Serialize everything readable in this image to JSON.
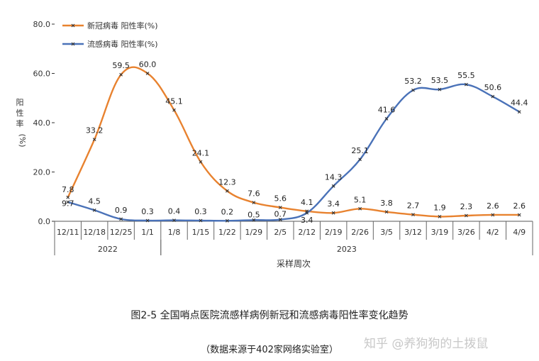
{
  "chart_data": {
    "type": "line",
    "categories": [
      "12/11",
      "12/18",
      "12/25",
      "1/1",
      "1/8",
      "1/15",
      "1/22",
      "1/29",
      "2/5",
      "2/12",
      "2/19",
      "2/26",
      "3/5",
      "3/12",
      "3/19",
      "3/26",
      "4/2",
      "4/9"
    ],
    "year_groups": [
      {
        "label": "2022",
        "from": 0,
        "to": 3
      },
      {
        "label": "2023",
        "from": 4,
        "to": 17
      }
    ],
    "series": [
      {
        "name": "新冠病毒 阳性率(%)",
        "color": "#e8822f",
        "values": [
          9.7,
          33.2,
          59.5,
          60.0,
          45.1,
          24.1,
          12.3,
          7.6,
          5.6,
          4.1,
          3.4,
          5.1,
          3.8,
          2.7,
          1.9,
          2.3,
          2.6,
          2.6
        ],
        "labels": [
          "9.7",
          "33.2",
          "59.5",
          "60.0",
          "45.1",
          "24.1",
          "12.3",
          "7.6",
          "5.6",
          "4.1",
          "3.4",
          "5.1",
          "3.8",
          "2.7",
          "1.9",
          "2.3",
          "2.6",
          "2.6"
        ]
      },
      {
        "name": "流感病毒 阳性率(%)",
        "color": "#4a72b8",
        "values": [
          7.8,
          4.5,
          0.9,
          0.3,
          0.4,
          0.3,
          0.2,
          0.5,
          0.7,
          3.4,
          14.3,
          25.1,
          41.6,
          53.2,
          53.5,
          55.5,
          50.6,
          44.4
        ],
        "labels": [
          "7.8",
          "4.5",
          "0.9",
          "0.3",
          "0.4",
          "0.3",
          "0.2",
          "0.5",
          "0.7",
          "3.4",
          "14.3",
          "25.1",
          "41.6",
          "53.2",
          "53.5",
          "55.5",
          "50.6",
          "44.4"
        ]
      }
    ],
    "ylim": [
      0,
      80
    ],
    "yticks": [
      "0.0",
      "20.0",
      "40.0",
      "60.0",
      "80.0"
    ],
    "ylabel": "阳性率(%)",
    "xlabel": "采样周次",
    "legend_position": "top-left",
    "grid": false
  },
  "caption": "图2-5 全国哨点医院流感样病例新冠和流感病毒阳性率变化趋势",
  "source_note": "（数据来源于402家网络实验室）",
  "watermark": "知乎 @养狗狗的土拨鼠"
}
